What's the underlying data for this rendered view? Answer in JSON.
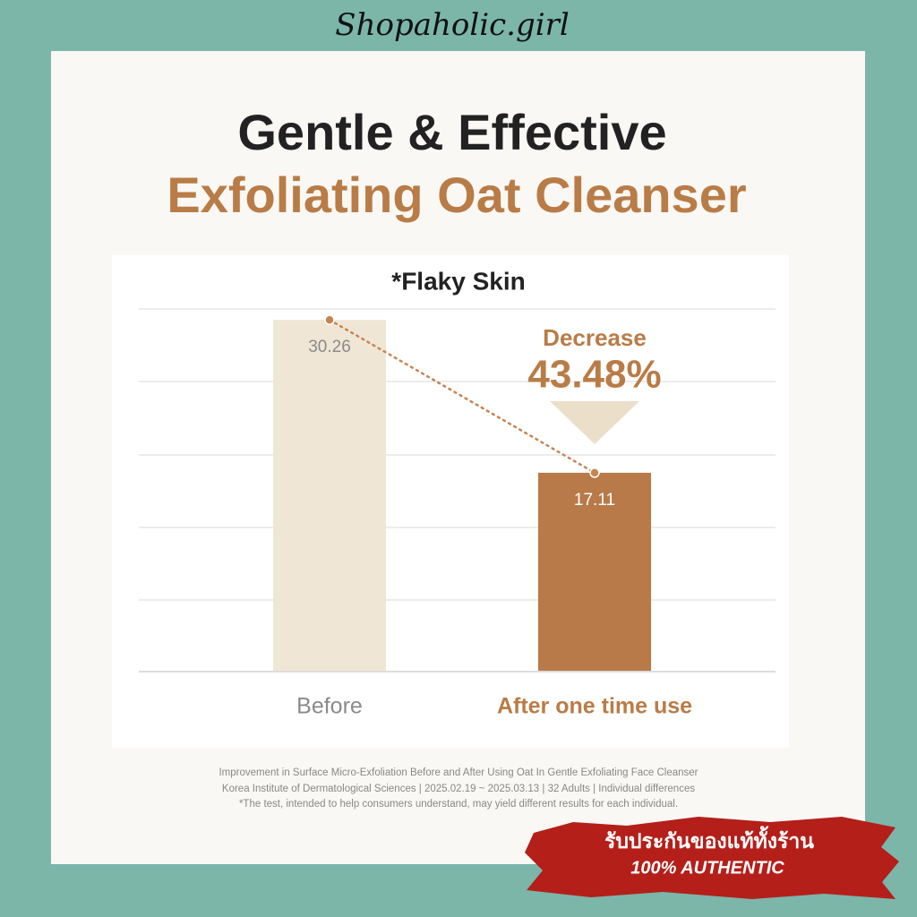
{
  "watermark": "Shopaholic.girl",
  "header": {
    "title": "Gentle & Effective",
    "subtitle": "Exfoliating Oat Cleanser"
  },
  "chart_data": {
    "type": "bar",
    "title": "*Flaky Skin",
    "categories": [
      "Before",
      "After one time use"
    ],
    "values": [
      30.26,
      17.11
    ],
    "colors": [
      "#f0e6d5",
      "#b77a48"
    ],
    "ylim": [
      0,
      31.2
    ],
    "grid": true,
    "annotation": {
      "text": "Decrease",
      "value_label": "43.48%"
    }
  },
  "footnotes": [
    "Improvement in Surface Micro-Exfoliation Before and After Using Oat In Gentle Exfoliating Face Cleanser",
    "Korea Institute of Dermatological Sciences | 2025.02.19 ~ 2025.03.13 | 32 Adults | Individual differences",
    "*The test, intended to help consumers understand, may yield different results for each individual."
  ],
  "badge": {
    "line1": "รับประกันของแท้ทั้งร้าน",
    "line2": "100% AUTHENTIC"
  }
}
